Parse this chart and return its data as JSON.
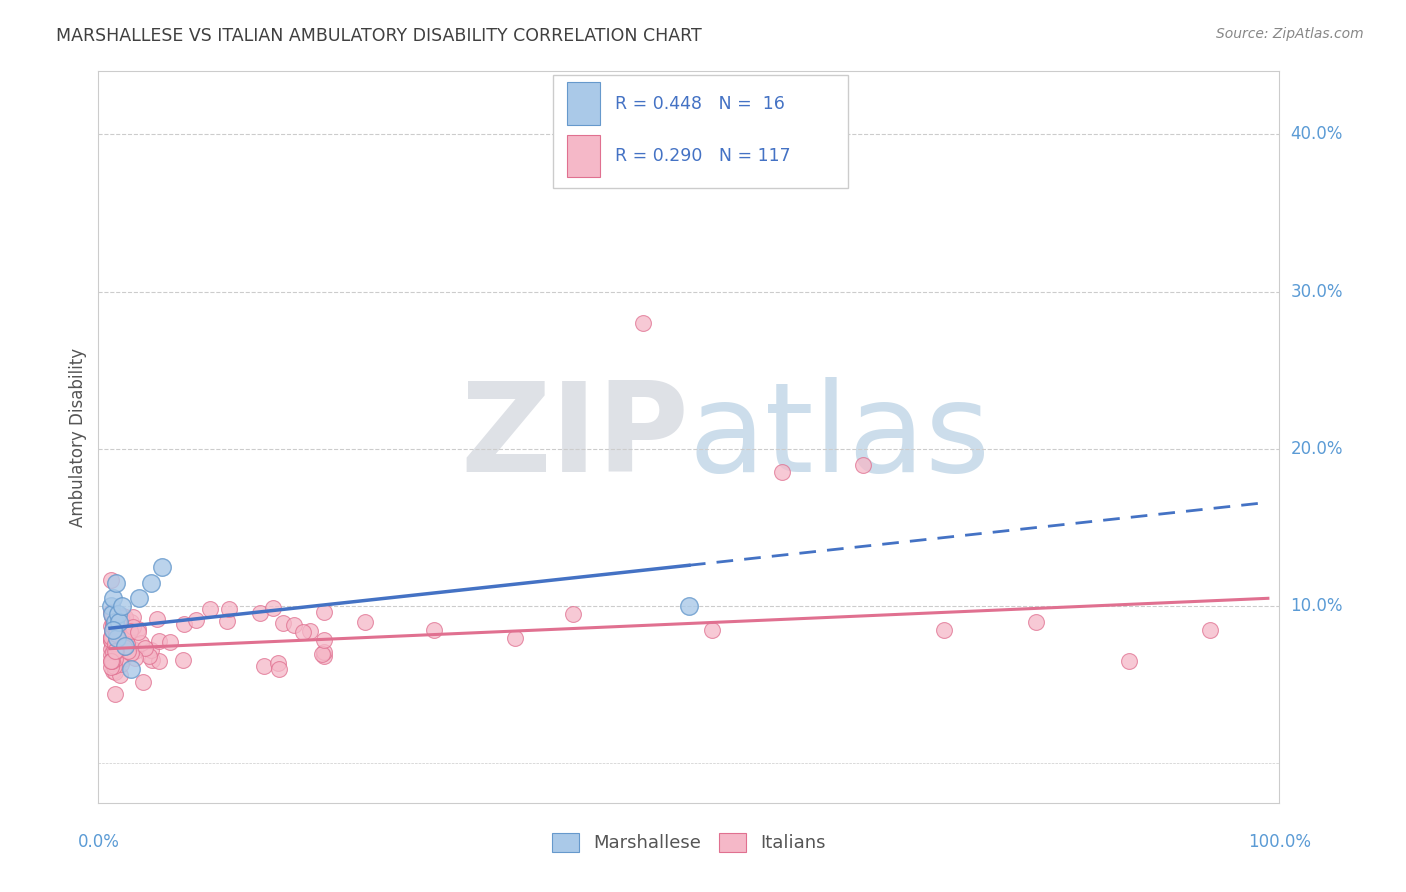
{
  "title": "MARSHALLESE VS ITALIAN AMBULATORY DISABILITY CORRELATION CHART",
  "source": "Source: ZipAtlas.com",
  "ylabel": "Ambulatory Disability",
  "background_color": "#ffffff",
  "grid_color": "#cccccc",
  "title_color": "#404040",
  "axis_label_color": "#5b9bd5",
  "blue_color": "#aac9e8",
  "blue_edge_color": "#6699cc",
  "blue_line_color": "#4472c4",
  "pink_color": "#f5b8c8",
  "pink_edge_color": "#e07090",
  "pink_line_color": "#e07090",
  "legend_text_color": "#4472c4",
  "ytick_values": [
    0.1,
    0.2,
    0.3,
    0.4
  ],
  "ytick_labels": [
    "10.0%",
    "20.0%",
    "30.0%",
    "40.0%"
  ],
  "xlim": [
    -0.01,
    1.01
  ],
  "ylim": [
    -0.025,
    0.44
  ]
}
